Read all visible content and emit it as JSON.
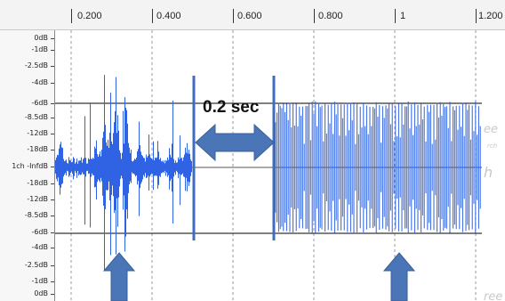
{
  "timeline": {
    "ticks": [
      "0.200",
      "0.400",
      "0.600",
      "0.800",
      "1",
      "1.200"
    ]
  },
  "vertical_ruler": {
    "labels": [
      "0dB",
      "-1dB",
      "-2.5dB",
      "-4dB",
      "-6dB",
      "-8.5dB",
      "-12dB",
      "-18dB",
      "1ch -InfdB",
      "-18dB",
      "-12dB",
      "-8.5dB",
      "-6dB",
      "-4dB",
      "-2.5dB",
      "-1dB",
      "0dB"
    ]
  },
  "annotation": {
    "label": "0.2 sec",
    "arrow_color": "#4a76b8"
  },
  "waveform": {
    "color": "#2f63e4",
    "marker_color": "#3f6cc0"
  }
}
